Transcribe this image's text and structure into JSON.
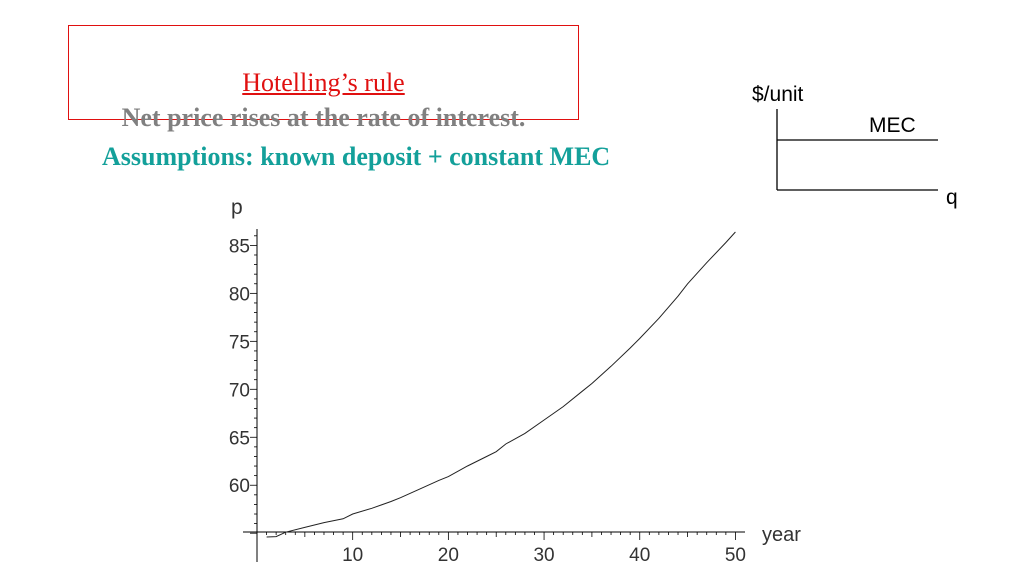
{
  "title": {
    "rule": "Hotelling’s rule",
    "statement": "Net price rises at the rate of interest."
  },
  "assumptions": "Assumptions:  known deposit + constant MEC",
  "mec_diagram": {
    "y_label": "$/unit",
    "curve_label": "MEC",
    "x_label": "q"
  },
  "colors": {
    "title_red": "#e01010",
    "statement_gray": "#808080",
    "assumption_teal": "#13a09a"
  },
  "chart_data": {
    "type": "line",
    "xlabel": "year",
    "ylabel": "p",
    "xlim": [
      0,
      51
    ],
    "ylim": [
      54.5,
      86.5
    ],
    "x_ticks": [
      10,
      20,
      30,
      40,
      50
    ],
    "y_ticks": [
      60,
      65,
      70,
      75,
      80,
      85
    ],
    "x_tick_labels": [
      "10",
      "20",
      "30",
      "40",
      "50"
    ],
    "y_tick_labels": [
      "60",
      "65",
      "70",
      "75",
      "80",
      "85"
    ],
    "grid": false,
    "series": [
      {
        "x": [
          1,
          2,
          3,
          5,
          7,
          9,
          10,
          12,
          14,
          15,
          17,
          19,
          20,
          22,
          24,
          25,
          26,
          28,
          30,
          32,
          34,
          35,
          37,
          39,
          40,
          42,
          44,
          45,
          47,
          49,
          50
        ],
        "y": [
          54.6,
          54.65,
          55.1,
          55.6,
          56.1,
          56.5,
          57.0,
          57.6,
          58.3,
          58.7,
          59.6,
          60.5,
          60.9,
          62.0,
          63.0,
          63.5,
          64.3,
          65.4,
          66.8,
          68.2,
          69.8,
          70.6,
          72.4,
          74.3,
          75.3,
          77.4,
          79.7,
          81.0,
          83.2,
          85.3,
          86.4
        ]
      }
    ]
  }
}
